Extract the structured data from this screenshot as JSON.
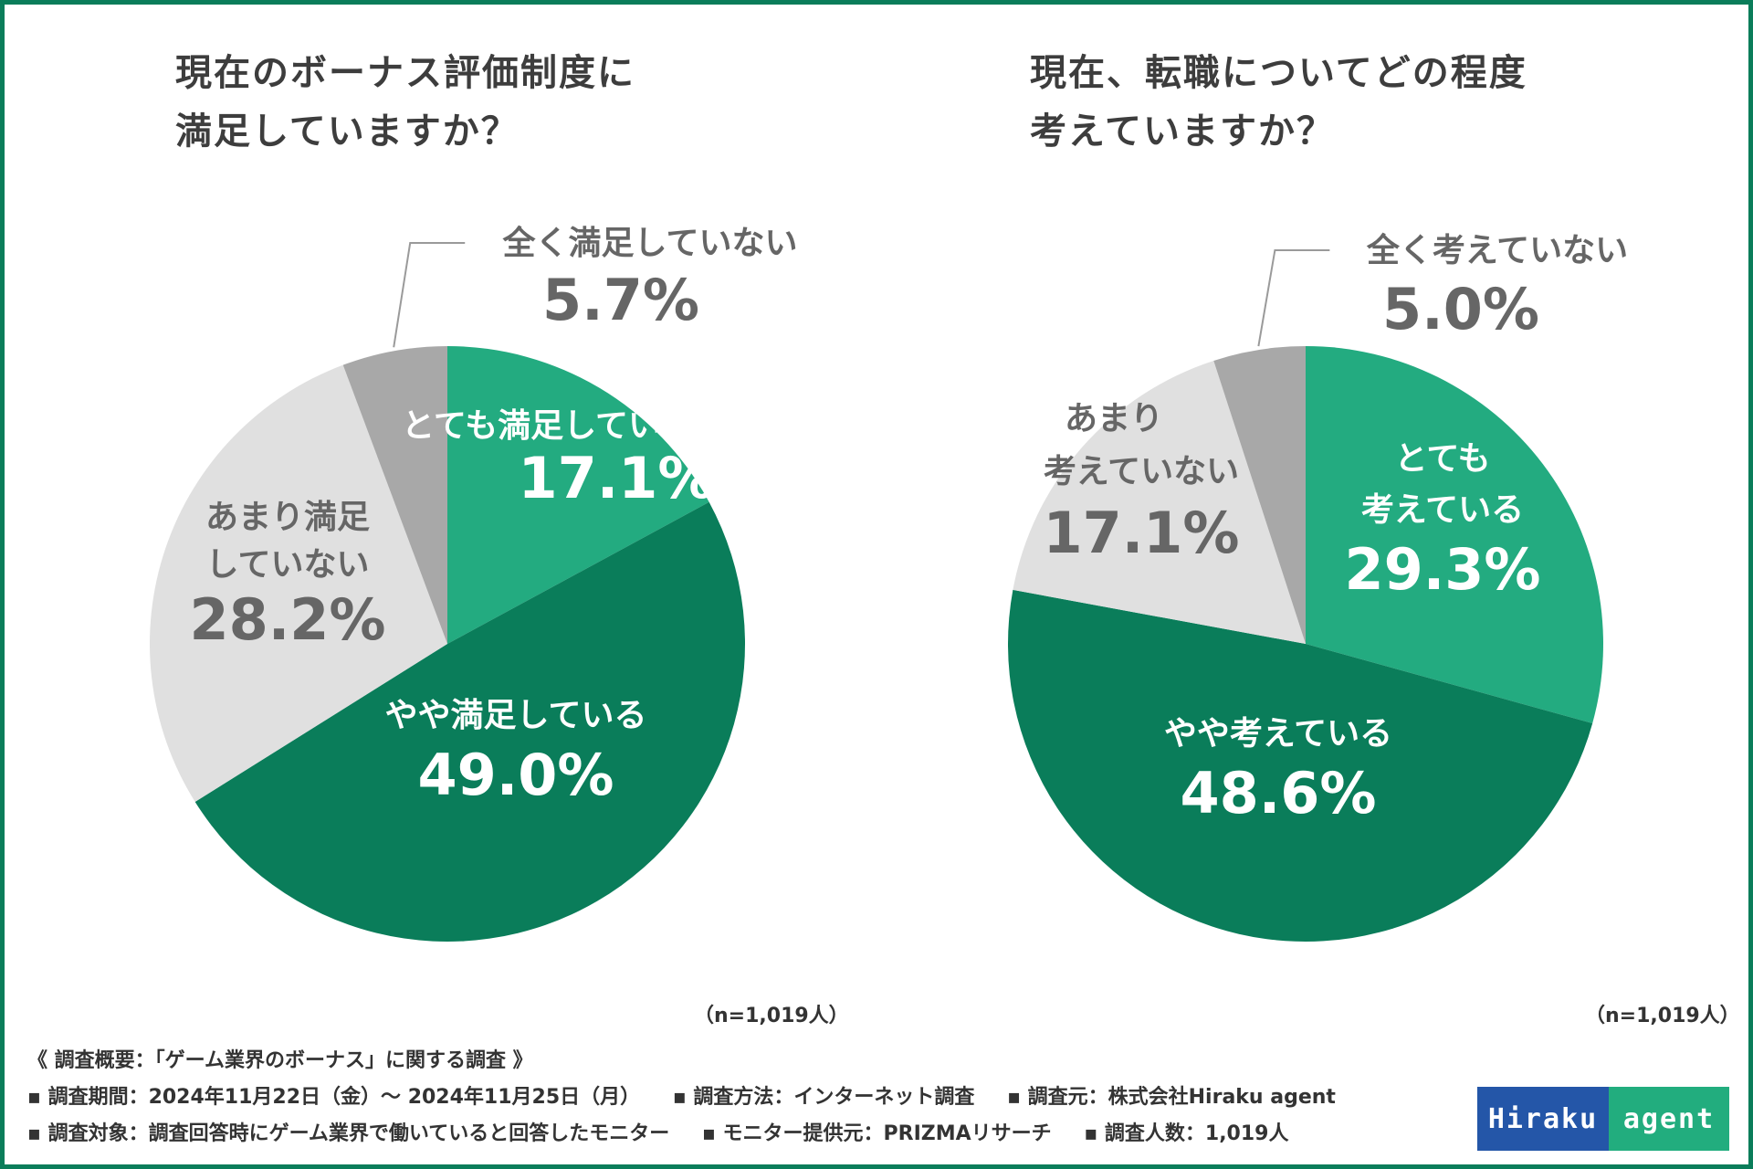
{
  "colors": {
    "border": "#0a7d5a",
    "very": "#23ab80",
    "somewhat": "#0a7d5a",
    "not_much": "#e0e0e0",
    "not_at_all": "#a8a8a8",
    "label_dark": "#666666",
    "label_light": "#ffffff"
  },
  "chart_data": [
    {
      "type": "pie",
      "title_lines": [
        "現在のボーナス評価制度に",
        "満足していますか？"
      ],
      "note": "（n=1,019人）",
      "slices": [
        {
          "label_lines": [
            "とても満足している"
          ],
          "value": 17.1,
          "value_text": "17.1%"
        },
        {
          "label_lines": [
            "やや満足している"
          ],
          "value": 49.0,
          "value_text": "49.0%"
        },
        {
          "label_lines": [
            "あまり満足",
            "していない"
          ],
          "value": 28.2,
          "value_text": "28.2%"
        },
        {
          "label_lines": [
            "全く満足していない"
          ],
          "value": 5.7,
          "value_text": "5.7%"
        }
      ]
    },
    {
      "type": "pie",
      "title_lines": [
        "現在、転職についてどの程度",
        "考えていますか？"
      ],
      "note": "（n=1,019人）",
      "slices": [
        {
          "label_lines": [
            "とても",
            "考えている"
          ],
          "value": 29.3,
          "value_text": "29.3%"
        },
        {
          "label_lines": [
            "やや考えている"
          ],
          "value": 48.6,
          "value_text": "48.6%"
        },
        {
          "label_lines": [
            "あまり",
            "考えていない"
          ],
          "value": 17.1,
          "value_text": "17.1%"
        },
        {
          "label_lines": [
            "全く考えていない"
          ],
          "value": 5.0,
          "value_text": "5.0%"
        }
      ]
    }
  ],
  "footer": {
    "heading": "《 調査概要：「ゲーム業界のボーナス」に関する調査 》",
    "period": "▪ 調査期間：2024年11月22日（金）～ 2024年11月25日（月）",
    "method": "▪ 調査方法：インターネット調査",
    "source": "▪ 調査元：株式会社Hiraku agent",
    "target": "▪ 調査対象：調査回答時にゲーム業界で働いていると回答したモニター",
    "provider": "▪ モニター提供元：PRIZMAリサーチ",
    "count": "▪ 調査人数：1,019人"
  },
  "logo": {
    "part1": "Hiraku",
    "part2": "agent"
  }
}
